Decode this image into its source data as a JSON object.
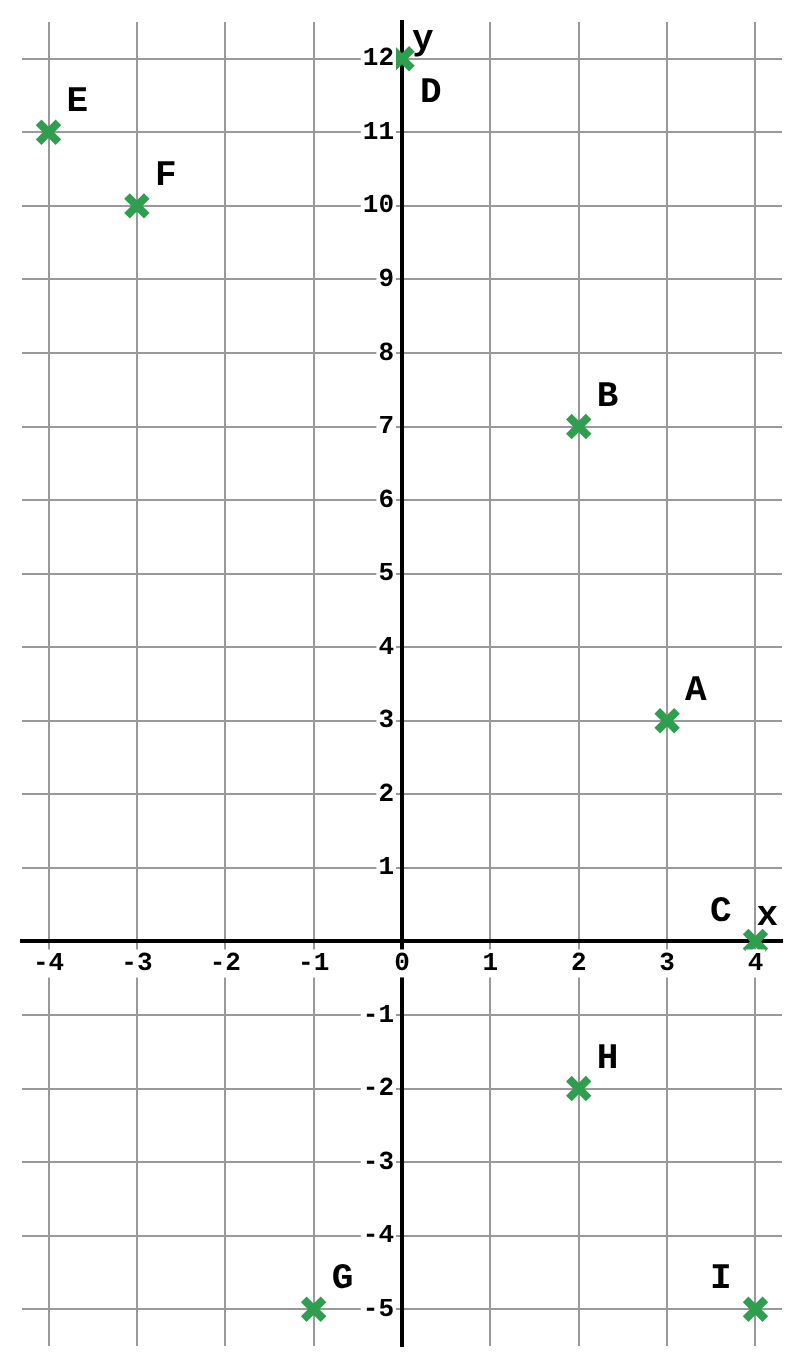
{
  "chart_data": {
    "type": "scatter",
    "xlabel": "x",
    "ylabel": "y",
    "series": [
      {
        "color": "#2e9e4f",
        "x": [
          3,
          2,
          4,
          0,
          -4,
          -3,
          -1,
          2,
          4
        ],
        "values": [
          3,
          7,
          0,
          12,
          11,
          10,
          -5,
          -2,
          -5
        ]
      }
    ],
    "annotations": [
      {
        "text": "A",
        "x": 3,
        "y": 3
      },
      {
        "text": "B",
        "x": 2,
        "y": 7
      },
      {
        "text": "C",
        "x": 4,
        "y": 0
      },
      {
        "text": "D",
        "x": 0,
        "y": 12
      },
      {
        "text": "E",
        "x": -4,
        "y": 11
      },
      {
        "text": "F",
        "x": -3,
        "y": 10
      },
      {
        "text": "G",
        "x": -1,
        "y": -5
      },
      {
        "text": "H",
        "x": 2,
        "y": -2
      },
      {
        "text": "I",
        "x": 4,
        "y": -5
      }
    ],
    "xlim": [
      -4.3,
      4.3
    ],
    "ylim": [
      -5.5,
      12.5
    ],
    "xticks": [
      -4,
      -3,
      -2,
      -1,
      0,
      1,
      2,
      3,
      4
    ],
    "yticks": [
      -5,
      -4,
      -3,
      -2,
      -1,
      {
        "value": 0,
        "label": null
      },
      1,
      2,
      3,
      4,
      5,
      6,
      7,
      8,
      9,
      10,
      11,
      12
    ],
    "grid": true,
    "marker": "cross"
  }
}
